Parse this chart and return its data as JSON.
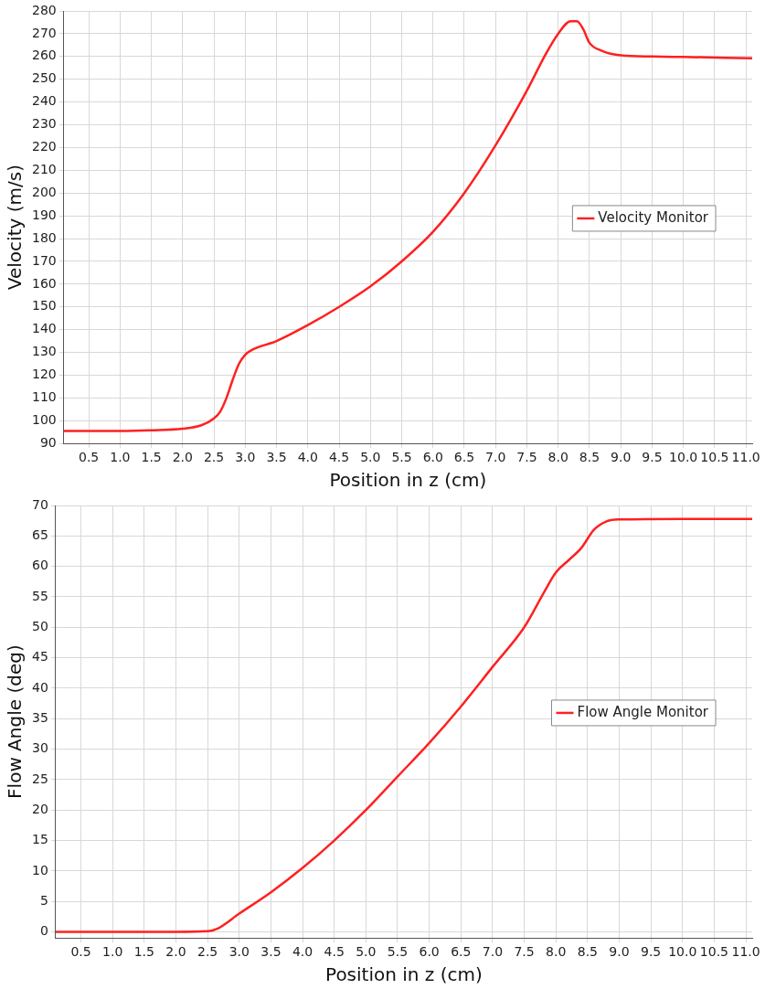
{
  "chart_data": [
    {
      "type": "line",
      "xlabel": "Position in z (cm)",
      "ylabel": "Velocity (m/s)",
      "legend": "right",
      "grid": true,
      "marker": "none",
      "line_style": "solid",
      "xlim": [
        0.1,
        11.1
      ],
      "xticks": [
        0.5,
        {
          "value": 1,
          "label": "1.0"
        },
        1.5,
        {
          "value": 2,
          "label": "2.0"
        },
        2.5,
        {
          "value": 3,
          "label": "3.0"
        },
        3.5,
        {
          "value": 4,
          "label": "4.0"
        },
        4.5,
        {
          "value": 5,
          "label": "5.0"
        },
        5.5,
        {
          "value": 6,
          "label": "6.0"
        },
        6.5,
        {
          "value": 7,
          "label": "7.0"
        },
        7.5,
        {
          "value": 8,
          "label": "8.0"
        },
        8.5,
        {
          "value": 9,
          "label": "9.0"
        },
        9.5,
        {
          "value": 10,
          "label": "10.0"
        },
        10.5,
        {
          "value": 11,
          "label": "11.0"
        }
      ],
      "ylim": [
        90,
        280
      ],
      "yticks": [
        90,
        100,
        110,
        120,
        130,
        140,
        150,
        160,
        170,
        180,
        190,
        200,
        210,
        220,
        230,
        240,
        250,
        260,
        270,
        280
      ],
      "x": [
        0.1,
        1.0,
        1.5,
        2.0,
        2.3,
        2.5,
        2.6,
        2.7,
        2.8,
        2.9,
        3.0,
        3.1,
        3.5,
        4.0,
        4.5,
        5.0,
        5.5,
        6.0,
        6.5,
        7.0,
        7.5,
        7.8,
        8.0,
        8.2,
        8.3,
        8.4,
        8.5,
        8.7,
        9.0,
        9.5,
        10.0,
        11.1
      ],
      "series": [
        {
          "name": "Velocity Monitor",
          "color": "#ff2020",
          "values": [
            95.5,
            95.5,
            95.8,
            96.5,
            98,
            101,
            104,
            110,
            118,
            125,
            129,
            131,
            135,
            142,
            150,
            159,
            170,
            183,
            200,
            221,
            245,
            261,
            270,
            275.5,
            275.5,
            272,
            266,
            262.5,
            260.5,
            260,
            259.8,
            259.2
          ]
        }
      ]
    },
    {
      "type": "line",
      "xlabel": "Position in z (cm)",
      "ylabel": "Flow Angle (deg)",
      "legend": "right",
      "grid": true,
      "marker": "none",
      "line_style": "solid",
      "xlim": [
        0.1,
        11.1
      ],
      "xticks": [
        0.5,
        {
          "value": 1,
          "label": "1.0"
        },
        1.5,
        {
          "value": 2,
          "label": "2.0"
        },
        2.5,
        {
          "value": 3,
          "label": "3.0"
        },
        3.5,
        {
          "value": 4,
          "label": "4.0"
        },
        4.5,
        {
          "value": 5,
          "label": "5.0"
        },
        5.5,
        {
          "value": 6,
          "label": "6.0"
        },
        6.5,
        {
          "value": 7,
          "label": "7.0"
        },
        7.5,
        {
          "value": 8,
          "label": "8.0"
        },
        8.5,
        {
          "value": 9,
          "label": "9.0"
        },
        9.5,
        {
          "value": 10,
          "label": "10.0"
        },
        10.5,
        {
          "value": 11,
          "label": "11.0"
        }
      ],
      "ylim": [
        -1,
        70
      ],
      "yticks": [
        0,
        5,
        10,
        15,
        20,
        25,
        30,
        35,
        40,
        45,
        50,
        55,
        60,
        65,
        70
      ],
      "x": [
        0.1,
        1.0,
        2.0,
        2.5,
        2.65,
        3.0,
        3.5,
        4.0,
        4.5,
        5.0,
        5.5,
        6.0,
        6.5,
        7.0,
        7.5,
        7.8,
        8.0,
        8.2,
        8.4,
        8.6,
        8.8,
        9.0,
        10.0,
        11.1
      ],
      "series": [
        {
          "name": "Flow Angle Monitor",
          "color": "#ff2020",
          "values": [
            0,
            0,
            0,
            0.1,
            0.5,
            3,
            6.5,
            10.5,
            15,
            20,
            25.5,
            31,
            37,
            43.5,
            50,
            55.5,
            59,
            61,
            63,
            66,
            67.4,
            67.7,
            67.8,
            67.8
          ]
        }
      ]
    }
  ]
}
